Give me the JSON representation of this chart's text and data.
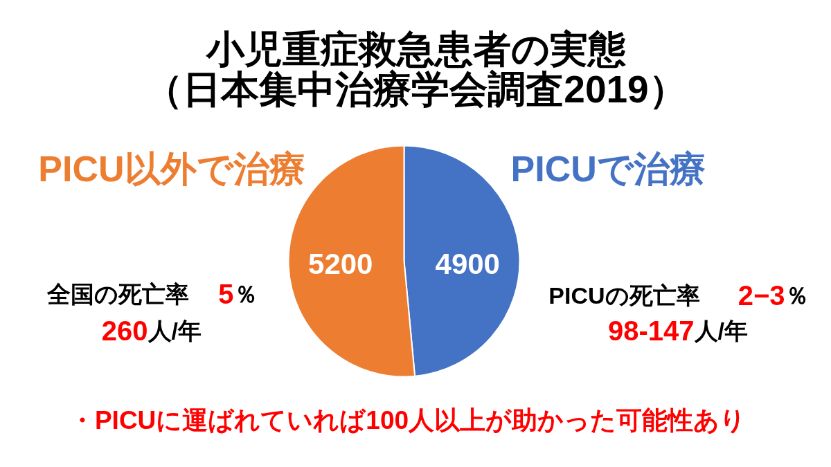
{
  "chart_data": {
    "type": "pie",
    "title": "小児重症救急患者の実態",
    "subtitle": "（日本集中治療学会調査2019）",
    "categories": [
      "PICUで治療",
      "PICU以外で治療"
    ],
    "values": [
      4900,
      5200
    ],
    "colors": [
      "#4472c4",
      "#ed7d31"
    ],
    "data_labels": true,
    "annotations": [
      "全国の死亡率",
      "5％",
      "260人/年",
      "PICUの死亡率",
      "2−3％",
      "98-147人/年",
      "・PICUに運ばれていれば100人以上が助かった可能性あり"
    ]
  }
}
